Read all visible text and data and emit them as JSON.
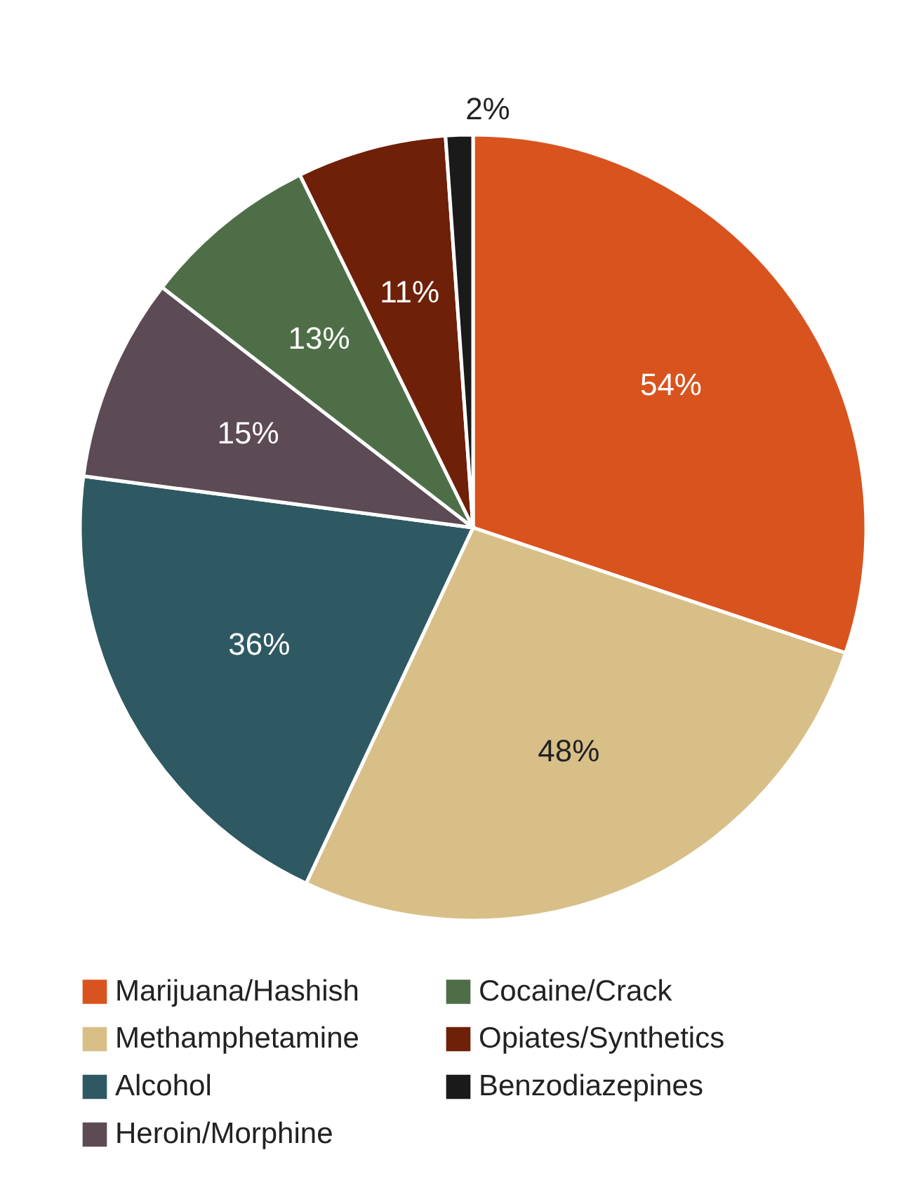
{
  "chart_data": {
    "type": "pie",
    "categories": [
      "Marijuana/Hashish",
      "Methamphetamine",
      "Alcohol",
      "Heroin/Morphine",
      "Cocaine/Crack",
      "Opiates/Synthetics",
      "Benzodiazepines"
    ],
    "values": [
      54,
      48,
      36,
      15,
      13,
      11,
      2
    ],
    "value_labels": [
      "54%",
      "48%",
      "36%",
      "15%",
      "13%",
      "11%",
      "2%"
    ],
    "colors": [
      "#d9531e",
      "#d8bf88",
      "#2e5962",
      "#5c4a55",
      "#4e6e47",
      "#6e2008",
      "#1a1a1a"
    ],
    "legend": "bottom"
  }
}
